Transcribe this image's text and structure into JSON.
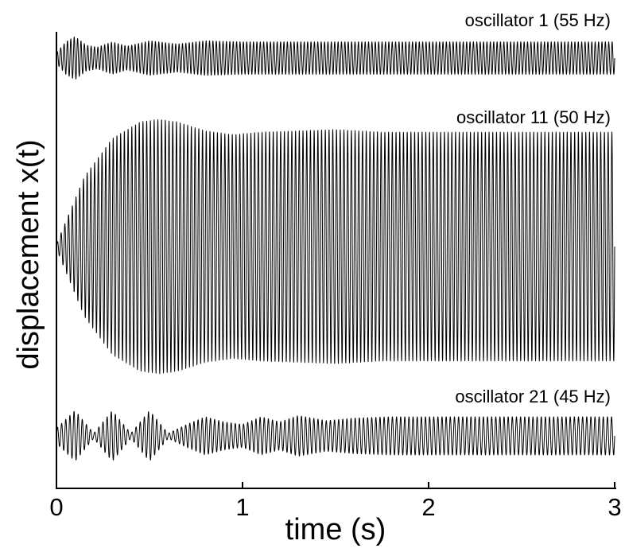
{
  "chart_data": {
    "type": "line",
    "title": "",
    "xlabel": "time (s)",
    "ylabel": "displacement x(t)",
    "xlim": [
      0,
      3
    ],
    "x_ticks": [
      0,
      1,
      2,
      3
    ],
    "grid": false,
    "series": [
      {
        "name": "oscillator 1 (55 Hz)",
        "frequency_hz": 55,
        "relative_amplitude": 0.17,
        "envelope": {
          "t": [
            0,
            0.05,
            0.1,
            0.16,
            0.22,
            0.3,
            0.38,
            0.5,
            0.65,
            0.8,
            1.0,
            3.0
          ],
          "a": [
            0.25,
            0.75,
            1.0,
            0.6,
            0.5,
            0.75,
            0.55,
            0.8,
            0.65,
            0.8,
            0.75,
            0.75
          ]
        }
      },
      {
        "name": "oscillator 11 (50 Hz)",
        "frequency_hz": 50,
        "relative_amplitude": 1.0,
        "envelope": {
          "t": [
            0,
            0.15,
            0.3,
            0.45,
            0.55,
            0.65,
            0.8,
            0.95,
            1.1,
            1.3,
            1.5,
            1.75,
            2.0,
            3.0
          ],
          "a": [
            0.02,
            0.55,
            0.85,
            0.98,
            1.0,
            0.98,
            0.91,
            0.88,
            0.9,
            0.91,
            0.92,
            0.9,
            0.9,
            0.9
          ]
        }
      },
      {
        "name": "oscillator 21 (45 Hz)",
        "frequency_hz": 45,
        "relative_amplitude": 0.2,
        "envelope": {
          "t": [
            0,
            0.1,
            0.2,
            0.3,
            0.4,
            0.5,
            0.6,
            0.7,
            0.8,
            0.9,
            1.0,
            1.1,
            1.2,
            1.3,
            1.45,
            1.6,
            1.8,
            2.0,
            3.0
          ],
          "a": [
            0.3,
            1.0,
            0.1,
            1.0,
            0.1,
            1.0,
            0.1,
            0.45,
            0.75,
            0.55,
            0.45,
            0.75,
            0.55,
            0.8,
            0.6,
            0.7,
            0.75,
            0.75,
            0.75
          ]
        }
      }
    ]
  }
}
